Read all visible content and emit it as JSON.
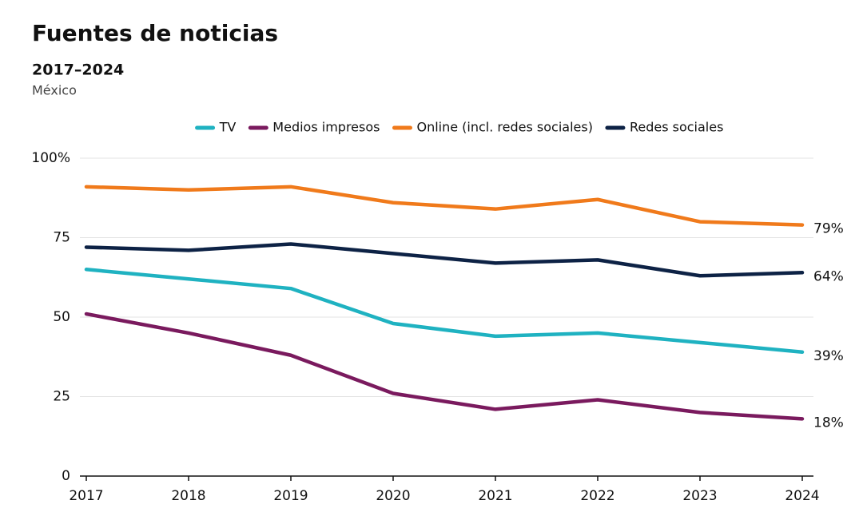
{
  "chart_data": {
    "type": "line",
    "title": "Fuentes de noticias",
    "subtitle": "2017–2024",
    "region": "México",
    "x": [
      2017,
      2018,
      2019,
      2020,
      2021,
      2022,
      2023,
      2024
    ],
    "xlim": [
      2017,
      2024
    ],
    "xticks": [
      2017,
      2018,
      2019,
      2020,
      2021,
      2022,
      2023,
      2024
    ],
    "ylim": [
      0,
      100
    ],
    "yticks": [
      0,
      25,
      50,
      75,
      {
        "value": 100,
        "label": "100%"
      }
    ],
    "grid": true,
    "legend": "top",
    "series": [
      {
        "name": "TV",
        "color": "#1fb2c1",
        "values": [
          65,
          62,
          59,
          48,
          44,
          45,
          42,
          39
        ],
        "value_labels": [
          null,
          null,
          null,
          null,
          null,
          null,
          null,
          "39%"
        ]
      },
      {
        "name": "Medios impresos",
        "color": "#7a1a5e",
        "values": [
          51,
          45,
          38,
          26,
          21,
          24,
          20,
          18
        ],
        "value_labels": [
          null,
          null,
          null,
          null,
          null,
          null,
          null,
          "18%"
        ]
      },
      {
        "name": "Online (incl. redes sociales)",
        "color": "#f07a1b",
        "values": [
          91,
          90,
          91,
          86,
          84,
          87,
          80,
          79
        ],
        "value_labels": [
          null,
          null,
          null,
          null,
          null,
          null,
          null,
          "79%"
        ]
      },
      {
        "name": "Redes sociales",
        "color": "#0d2245",
        "values": [
          72,
          71,
          73,
          70,
          67,
          68,
          63,
          64
        ],
        "value_labels": [
          null,
          null,
          null,
          null,
          null,
          null,
          null,
          "64%"
        ]
      }
    ]
  }
}
